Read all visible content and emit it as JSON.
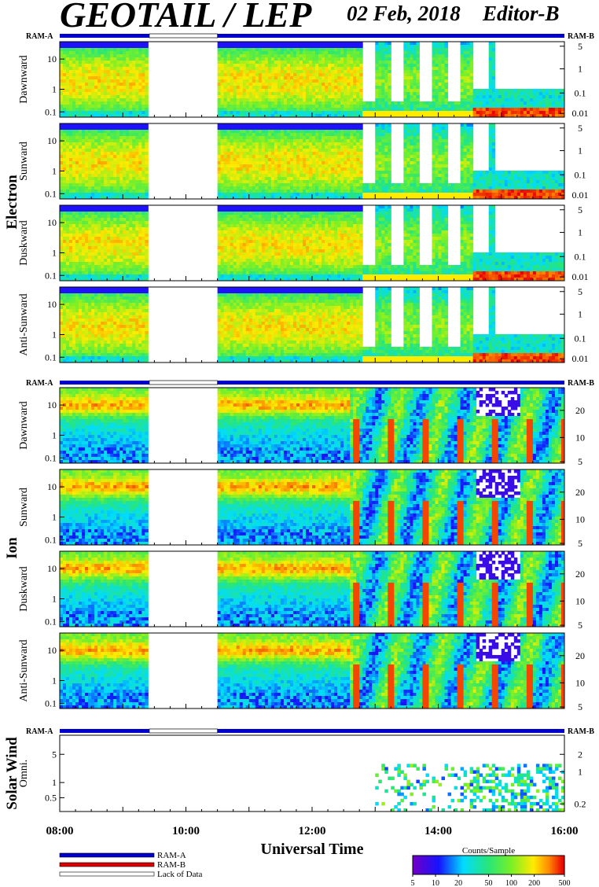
{
  "header": {
    "title": "GEOTAIL / LEP",
    "date": "02 Feb, 2018",
    "editor": "Editor-B"
  },
  "chart_data": {
    "type": "heatmap",
    "time_axis": {
      "label": "Universal Time",
      "ticks": [
        "08:00",
        "10:00",
        "12:00",
        "14:00",
        "16:00"
      ],
      "range_hours": [
        8,
        16
      ]
    },
    "data_gaps_hours": [
      [
        9.42,
        10.5
      ]
    ],
    "mode_bar_labels": {
      "left": "RAM-A",
      "right": "RAM-B"
    },
    "groups": [
      {
        "name": "Electron",
        "left_ticks": [
          "10",
          "1",
          "0.1"
        ],
        "right_ticks": [
          "5",
          "1",
          "0.1",
          "0.01"
        ],
        "panels": [
          "Dawnward",
          "Sunward",
          "Duskward",
          "Anti-Sunward"
        ]
      },
      {
        "name": "Ion",
        "left_ticks": [
          "10",
          "1",
          "0.1"
        ],
        "right_ticks": [
          "20",
          "10",
          "5"
        ],
        "panels": [
          "Dawnward",
          "Sunward",
          "Duskward",
          "Anti-Sunward"
        ]
      },
      {
        "name": "Solar Wind",
        "left_ticks": [
          "5",
          "1",
          "0.5"
        ],
        "right_ticks": [
          "2",
          "1",
          "0.2"
        ],
        "panels": [
          "Omni."
        ]
      }
    ],
    "legend": {
      "items": [
        {
          "label": "RAM-A",
          "color": "#0000cc"
        },
        {
          "label": "RAM-B",
          "color": "#dd0000"
        },
        {
          "label": "Lack of Data",
          "color": "#ffffff"
        }
      ]
    },
    "colorbar": {
      "title": "Counts/Sample",
      "ticks": [
        "5",
        "10",
        "20",
        "50",
        "100",
        "200",
        "500"
      ],
      "range": [
        5,
        500
      ],
      "scale": "log"
    }
  }
}
